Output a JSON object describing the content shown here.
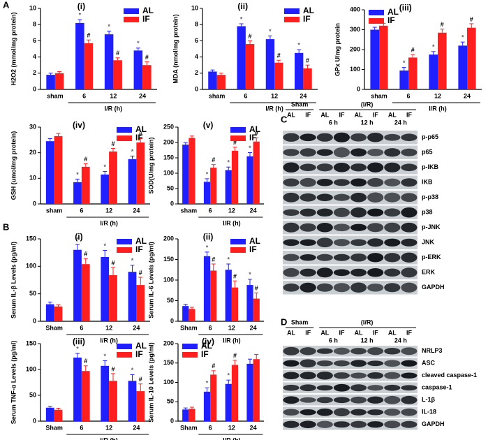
{
  "panels": [
    "A",
    "B",
    "C",
    "D"
  ],
  "chart_data": [
    {
      "type": "bar",
      "title": "(i)",
      "ylabel": "H2O2 (mmol/mg protein)",
      "xlabel": "I/R (h)",
      "categories": [
        "sham",
        "6",
        "12",
        "24"
      ],
      "ylim": [
        0,
        10
      ],
      "yticks": [
        0,
        2,
        4,
        6,
        8,
        10
      ],
      "legend": "upper right",
      "series": [
        {
          "name": "AL",
          "color": "#1f1fff",
          "values": [
            1.8,
            8.2,
            6.8,
            4.8
          ],
          "errors": [
            0.2,
            0.4,
            0.4,
            0.3
          ],
          "marks": [
            null,
            "*",
            "*",
            "*"
          ]
        },
        {
          "name": "IF",
          "color": "#ff1f1f",
          "values": [
            2.0,
            5.7,
            3.6,
            3.0
          ],
          "errors": [
            0.2,
            0.4,
            0.3,
            0.4
          ],
          "marks": [
            null,
            "#",
            "#",
            "#"
          ]
        }
      ]
    },
    {
      "type": "bar",
      "title": "(ii)",
      "ylabel": "MDA (nmol/mg protein)",
      "xlabel": "I/R (h)",
      "categories": [
        "sham",
        "6",
        "12",
        "24"
      ],
      "ylim": [
        0,
        10
      ],
      "yticks": [
        0,
        2,
        4,
        6,
        8,
        10
      ],
      "legend": "upper right",
      "series": [
        {
          "name": "AL",
          "color": "#1f1fff",
          "values": [
            2.2,
            7.8,
            6.2,
            4.5
          ],
          "errors": [
            0.2,
            0.3,
            0.4,
            0.4
          ],
          "marks": [
            null,
            "*",
            "*",
            "*"
          ]
        },
        {
          "name": "IF",
          "color": "#ff1f1f",
          "values": [
            1.8,
            5.6,
            3.3,
            2.6
          ],
          "errors": [
            0.2,
            0.4,
            0.3,
            0.4
          ],
          "marks": [
            null,
            "#",
            "#",
            "#"
          ]
        }
      ]
    },
    {
      "type": "bar",
      "title": "(iii)",
      "ylabel": "GPx U/mg protein",
      "xlabel": "I/R (h)",
      "categories": [
        "sham",
        "6",
        "12",
        "24"
      ],
      "ylim": [
        0,
        400
      ],
      "yticks": [
        0,
        100,
        200,
        300,
        400
      ],
      "legend": "upper left",
      "series": [
        {
          "name": "AL",
          "color": "#1f1fff",
          "values": [
            300,
            95,
            175,
            220
          ],
          "errors": [
            12,
            15,
            15,
            18
          ],
          "marks": [
            null,
            "*",
            "*",
            "*"
          ]
        },
        {
          "name": "IF",
          "color": "#ff1f1f",
          "values": [
            320,
            160,
            285,
            310
          ],
          "errors": [
            12,
            15,
            18,
            20
          ],
          "marks": [
            null,
            "#",
            "#",
            "#"
          ]
        }
      ]
    },
    {
      "type": "bar",
      "title": "(iv)",
      "ylabel": "GSH (umol/mg protein)",
      "xlabel": "I/R (h)",
      "categories": [
        "sham",
        "6",
        "12",
        "24"
      ],
      "ylim": [
        0,
        30
      ],
      "yticks": [
        0,
        10,
        20,
        30
      ],
      "legend": "upper right",
      "series": [
        {
          "name": "AL",
          "color": "#1f1fff",
          "values": [
            24.5,
            8.5,
            11.5,
            17.5
          ],
          "errors": [
            1,
            1.2,
            1.2,
            1.2
          ],
          "marks": [
            null,
            "*",
            "*",
            "*"
          ]
        },
        {
          "name": "IF",
          "color": "#ff1f1f",
          "values": [
            26.5,
            14.5,
            20.5,
            24
          ],
          "errors": [
            1,
            1.2,
            1.2,
            1.5
          ],
          "marks": [
            null,
            "#",
            "#",
            "#"
          ]
        }
      ]
    },
    {
      "type": "bar",
      "title": "(v)",
      "ylabel": "SOD(U/mg protein)",
      "xlabel": "I/R (h)",
      "categories": [
        "sham",
        "6",
        "12",
        "24"
      ],
      "ylim": [
        0,
        250
      ],
      "yticks": [
        0,
        50,
        100,
        150,
        200,
        250
      ],
      "legend": "upper right",
      "series": [
        {
          "name": "AL",
          "color": "#1f1fff",
          "values": [
            193,
            72,
            110,
            155
          ],
          "errors": [
            6,
            10,
            10,
            12
          ],
          "marks": [
            null,
            "*",
            "*",
            "*"
          ]
        },
        {
          "name": "IF",
          "color": "#ff1f1f",
          "values": [
            215,
            118,
            173,
            203
          ],
          "errors": [
            6,
            10,
            12,
            12
          ],
          "marks": [
            null,
            "#",
            "#",
            "#"
          ]
        }
      ]
    },
    {
      "type": "bar",
      "title": "(i)",
      "ylabel": "Serum IL-β Levels (pg/ml)",
      "xlabel": "I/R (h)",
      "categories": [
        "Sham",
        "6",
        "12",
        "24"
      ],
      "ylim": [
        0,
        150
      ],
      "yticks": [
        0,
        50,
        100,
        150
      ],
      "legend": "upper right",
      "series": [
        {
          "name": "AL",
          "color": "#1f1fff",
          "values": [
            31,
            130,
            117,
            90
          ],
          "errors": [
            4,
            10,
            12,
            12
          ],
          "marks": [
            null,
            "*",
            "*",
            "*"
          ]
        },
        {
          "name": "IF",
          "color": "#ff1f1f",
          "values": [
            27,
            104,
            84,
            66
          ],
          "errors": [
            3,
            10,
            14,
            14
          ],
          "marks": [
            null,
            "#",
            "#",
            "#"
          ]
        }
      ]
    },
    {
      "type": "bar",
      "title": "(ii)",
      "ylabel": "Serum IL-6 Levels (pg/ml)",
      "xlabel": "I/R (h)",
      "categories": [
        "Sham",
        "6",
        "12",
        "24"
      ],
      "ylim": [
        0,
        200
      ],
      "yticks": [
        0,
        50,
        100,
        150,
        200
      ],
      "legend": "upper right",
      "series": [
        {
          "name": "AL",
          "color": "#1f1fff",
          "values": [
            37,
            158,
            125,
            88
          ],
          "errors": [
            4,
            10,
            14,
            14
          ],
          "marks": [
            null,
            "*",
            "*",
            "*"
          ]
        },
        {
          "name": "IF",
          "color": "#ff1f1f",
          "values": [
            30,
            123,
            82,
            55
          ],
          "errors": [
            4,
            16,
            16,
            14
          ],
          "marks": [
            null,
            "#",
            "#",
            "#"
          ]
        }
      ]
    },
    {
      "type": "bar",
      "title": "(iii)",
      "ylabel": "Serum TNF-α Levels (pg/ml)",
      "xlabel": "I/R (h)",
      "categories": [
        "Sham",
        "6",
        "12",
        "24"
      ],
      "ylim": [
        0,
        150
      ],
      "yticks": [
        0,
        50,
        100,
        150
      ],
      "legend": "upper right",
      "series": [
        {
          "name": "AL",
          "color": "#1f1fff",
          "values": [
            26,
            123,
            107,
            78
          ],
          "errors": [
            3,
            8,
            10,
            12
          ],
          "marks": [
            null,
            "*",
            "*",
            "*"
          ]
        },
        {
          "name": "IF",
          "color": "#ff1f1f",
          "values": [
            22,
            97,
            78,
            58
          ],
          "errors": [
            3,
            10,
            14,
            14
          ],
          "marks": [
            null,
            "#",
            "#",
            "#"
          ]
        }
      ]
    },
    {
      "type": "bar",
      "title": "(iv)",
      "ylabel": "Serum IL-10 Levels (pg/ml)",
      "xlabel": "I/R (h)",
      "categories": [
        "Sham",
        "6",
        "12",
        "24"
      ],
      "ylim": [
        0,
        200
      ],
      "yticks": [
        0,
        50,
        100,
        150,
        200
      ],
      "legend": "upper left",
      "series": [
        {
          "name": "AL",
          "color": "#1f1fff",
          "values": [
            30,
            76,
            96,
            148
          ],
          "errors": [
            4,
            10,
            10,
            12
          ],
          "marks": [
            null,
            "*",
            "*",
            null
          ]
        },
        {
          "name": "IF",
          "color": "#ff1f1f",
          "values": [
            32,
            120,
            145,
            160
          ],
          "errors": [
            4,
            10,
            12,
            12
          ],
          "marks": [
            null,
            "#",
            "#",
            null
          ]
        }
      ]
    }
  ],
  "blots": [
    {
      "sham": "Sham",
      "ir": "(I/R)",
      "lanes": [
        "AL",
        "IF",
        "AL",
        "IF",
        "AL",
        "IF",
        "AL",
        "IF"
      ],
      "times": [
        "6 h",
        "12 h",
        "24 h"
      ],
      "rows": [
        "p-p65",
        "p65",
        "p-IKB",
        "IKB",
        "p-p38",
        "p38",
        "p-JNK",
        "JNK",
        "p-ERK",
        "ERK",
        "GAPDH"
      ]
    },
    {
      "sham": "Sham",
      "ir": "(I/R)",
      "lanes": [
        "AL",
        "IF",
        "AL",
        "IF",
        "AL",
        "IF",
        "AL",
        "IF"
      ],
      "times": [
        "6 h",
        "12 h",
        "24 h"
      ],
      "rows": [
        "NRLP3",
        "ASC",
        "cleaved caspase-1",
        "caspase-1",
        "L-1β",
        "IL-18",
        "GAPDH"
      ]
    }
  ]
}
